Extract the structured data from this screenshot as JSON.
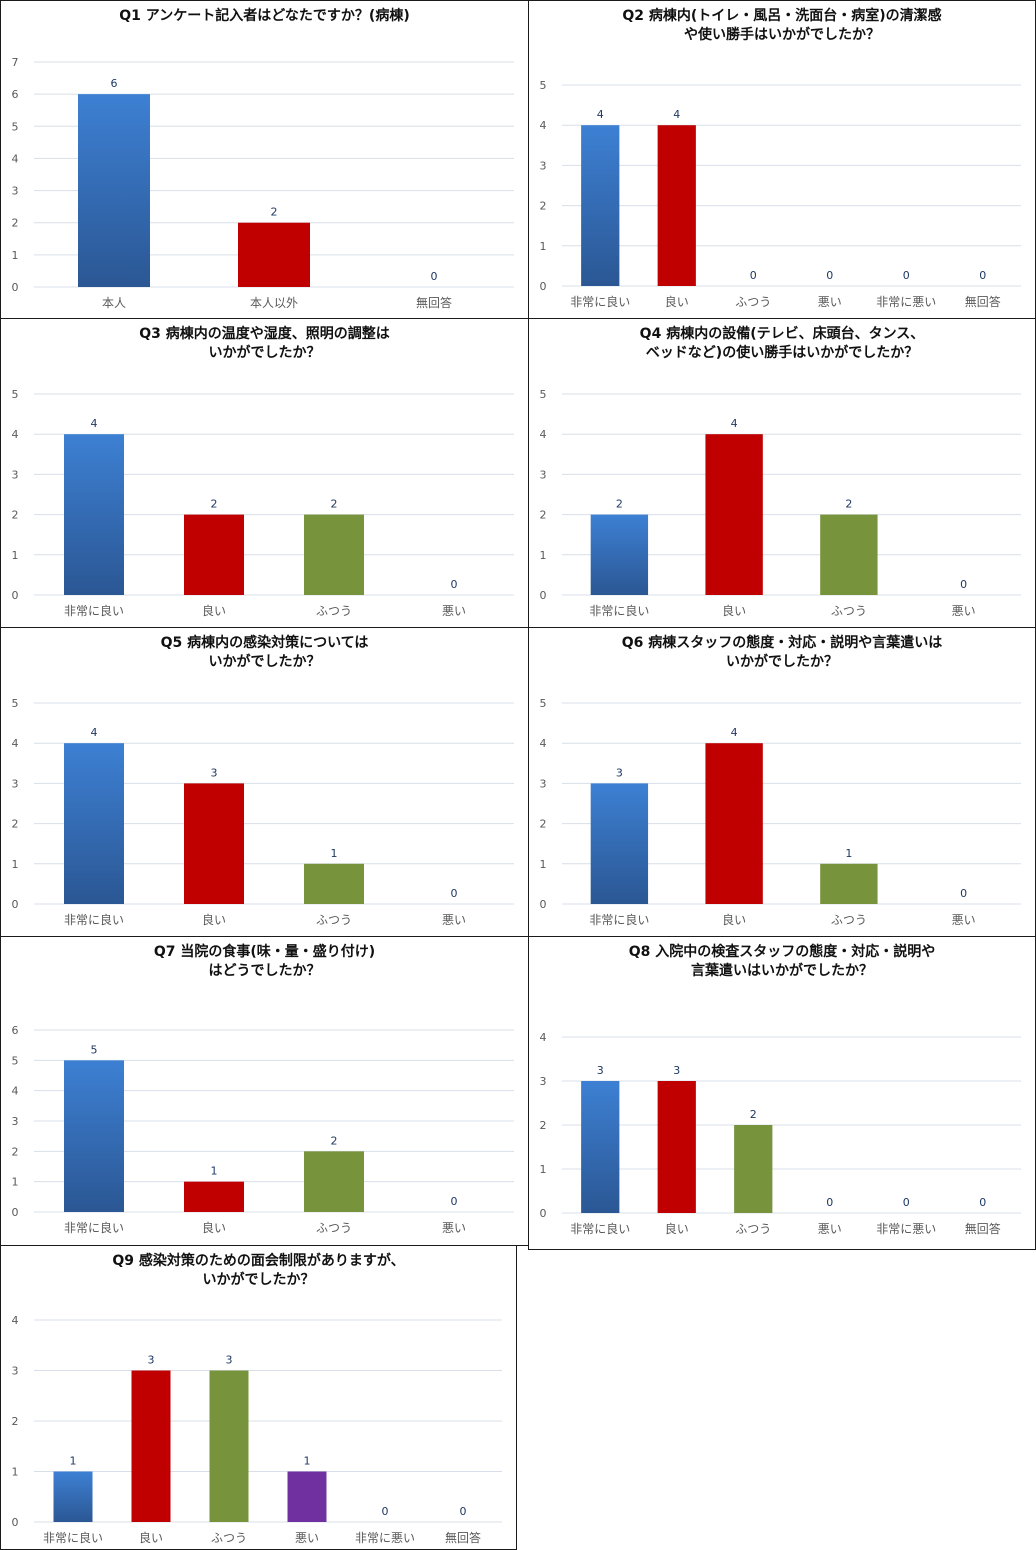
{
  "colors": {
    "blue_top": "#3d80d3",
    "blue_bottom": "#2b5794",
    "red": "#c00000",
    "green": "#77933c",
    "purple": "#7030a0",
    "grid": "#d9dfe8",
    "axis_text": "#595959",
    "label_text": "#1f3864"
  },
  "chart_data": [
    {
      "type": "bar",
      "title": [
        "Q1 アンケート記入者はどなたですか？(病棟)"
      ],
      "categories": [
        "本人",
        "本人以外",
        "無回答"
      ],
      "values": [
        6,
        2,
        0
      ],
      "colors": [
        "blue",
        "red",
        "blue"
      ],
      "ylim": [
        0,
        7
      ],
      "yticks": [
        0,
        1,
        2,
        3,
        4,
        5,
        6,
        7
      ],
      "grid": true
    },
    {
      "type": "bar",
      "title": [
        "Q2 病棟内(トイレ・風呂・洗面台・病室)の清潔感",
        "や使い勝手はいかがでしたか？"
      ],
      "categories": [
        "非常に良い",
        "良い",
        "ふつう",
        "悪い",
        "非常に悪い",
        "無回答"
      ],
      "values": [
        4,
        4,
        0,
        0,
        0,
        0
      ],
      "colors": [
        "blue",
        "red",
        "green",
        "purple",
        "blue",
        "blue"
      ],
      "ylim": [
        0,
        5
      ],
      "yticks": [
        0,
        1,
        2,
        3,
        4,
        5
      ],
      "grid": true
    },
    {
      "type": "bar",
      "title": [
        "Q3 病棟内の温度や湿度、照明の調整は",
        "いかがでしたか？"
      ],
      "categories": [
        "非常に良い",
        "良い",
        "ふつう",
        "悪い"
      ],
      "values": [
        4,
        2,
        2,
        0
      ],
      "colors": [
        "blue",
        "red",
        "green",
        "purple"
      ],
      "ylim": [
        0,
        5
      ],
      "yticks": [
        0,
        1,
        2,
        3,
        4,
        5
      ],
      "grid": true
    },
    {
      "type": "bar",
      "title": [
        "Q4 病棟内の設備(テレビ、床頭台、タンス、",
        "ベッドなど)の使い勝手はいかがでしたか？"
      ],
      "categories": [
        "非常に良い",
        "良い",
        "ふつう",
        "悪い"
      ],
      "values": [
        2,
        4,
        2,
        0
      ],
      "colors": [
        "blue",
        "red",
        "green",
        "purple"
      ],
      "ylim": [
        0,
        5
      ],
      "yticks": [
        0,
        1,
        2,
        3,
        4,
        5
      ],
      "grid": true
    },
    {
      "type": "bar",
      "title": [
        "Q5 病棟内の感染対策については",
        "いかがでしたか？"
      ],
      "categories": [
        "非常に良い",
        "良い",
        "ふつう",
        "悪い"
      ],
      "values": [
        4,
        3,
        1,
        0
      ],
      "colors": [
        "blue",
        "red",
        "green",
        "purple"
      ],
      "ylim": [
        0,
        5
      ],
      "yticks": [
        0,
        1,
        2,
        3,
        4,
        5
      ],
      "grid": true
    },
    {
      "type": "bar",
      "title": [
        "Q6 病棟スタッフの態度・対応・説明や言葉遣いは",
        "いかがでしたか？"
      ],
      "categories": [
        "非常に良い",
        "良い",
        "ふつう",
        "悪い"
      ],
      "values": [
        3,
        4,
        1,
        0
      ],
      "colors": [
        "blue",
        "red",
        "green",
        "purple"
      ],
      "ylim": [
        0,
        5
      ],
      "yticks": [
        0,
        1,
        2,
        3,
        4,
        5
      ],
      "grid": true
    },
    {
      "type": "bar",
      "title": [
        "Q7 当院の食事(味・量・盛り付け)",
        "はどうでしたか？"
      ],
      "categories": [
        "非常に良い",
        "良い",
        "ふつう",
        "悪い"
      ],
      "values": [
        5,
        1,
        2,
        0
      ],
      "colors": [
        "blue",
        "red",
        "green",
        "purple"
      ],
      "ylim": [
        0,
        6
      ],
      "yticks": [
        0,
        1,
        2,
        3,
        4,
        5,
        6
      ],
      "grid": true
    },
    {
      "type": "bar",
      "title": [
        "Q8 入院中の検査スタッフの態度・対応・説明や",
        "言葉遣いはいかがでしたか？"
      ],
      "categories": [
        "非常に良い",
        "良い",
        "ふつう",
        "悪い",
        "非常に悪い",
        "無回答"
      ],
      "values": [
        3,
        3,
        2,
        0,
        0,
        0
      ],
      "colors": [
        "blue",
        "red",
        "green",
        "purple",
        "blue",
        "blue"
      ],
      "ylim": [
        0,
        4
      ],
      "yticks": [
        0,
        1,
        2,
        3,
        4
      ],
      "grid": true
    },
    {
      "type": "bar",
      "title": [
        "Q9 感染対策のための面会制限がありますが、",
        "いかがでしたか？"
      ],
      "categories": [
        "非常に良い",
        "良い",
        "ふつう",
        "悪い",
        "非常に悪い",
        "無回答"
      ],
      "values": [
        1,
        3,
        3,
        1,
        0,
        0
      ],
      "colors": [
        "blue",
        "red",
        "green",
        "purple",
        "blue",
        "blue"
      ],
      "ylim": [
        0,
        4
      ],
      "yticks": [
        0,
        1,
        2,
        3,
        4
      ],
      "grid": true
    }
  ]
}
